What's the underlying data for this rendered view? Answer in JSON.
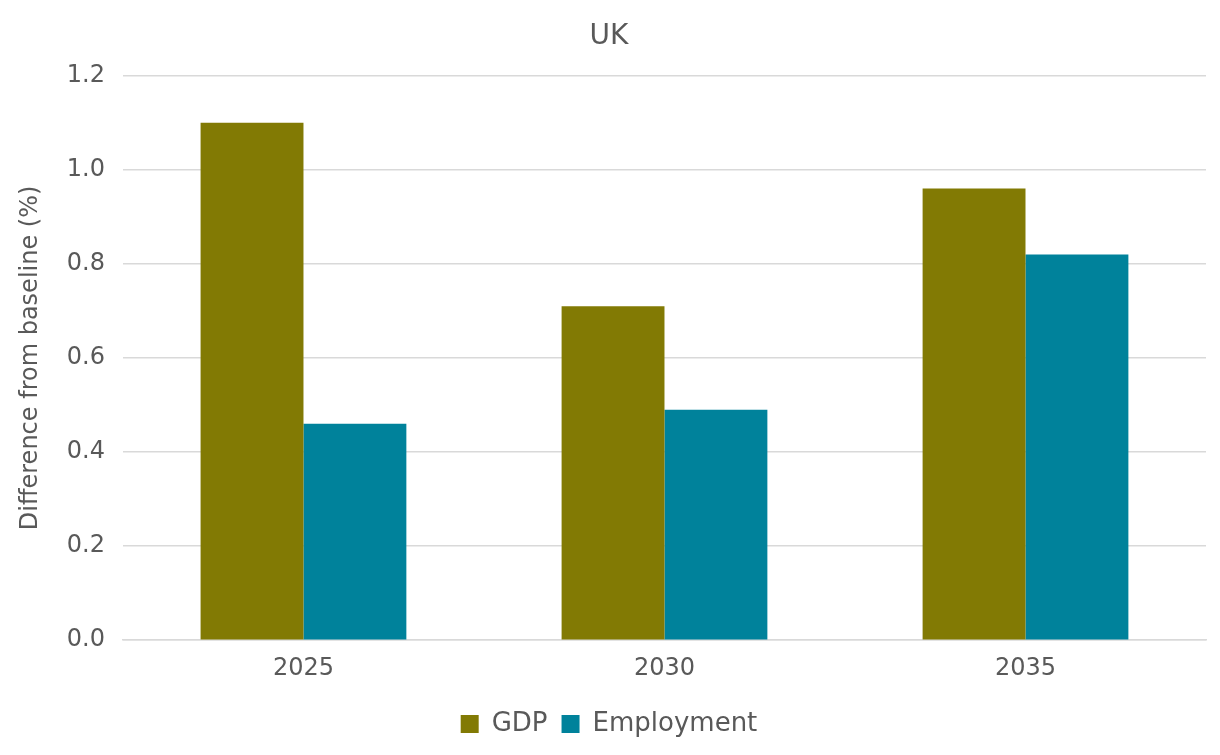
{
  "chart_data": {
    "type": "bar",
    "title": "UK",
    "ylabel": "Difference from baseline (%)",
    "categories": [
      "2025",
      "2030",
      "2035"
    ],
    "series": [
      {
        "name": "GDP",
        "color": "#827a04",
        "values": [
          1.1,
          0.71,
          0.96
        ]
      },
      {
        "name": "Employment",
        "color": "#00829b",
        "values": [
          0.46,
          0.49,
          0.82
        ]
      }
    ],
    "ylim": [
      0,
      1.2
    ],
    "yticks": [
      {
        "value": 0,
        "label": "0.0"
      },
      {
        "value": 0.2,
        "label": "0.2"
      },
      {
        "value": 0.4,
        "label": "0.4"
      },
      {
        "value": 0.6,
        "label": "0.6"
      },
      {
        "value": 0.8,
        "label": "0.8"
      },
      {
        "value": 1,
        "label": "1.0"
      },
      {
        "value": 1.2,
        "label": "1.2"
      }
    ],
    "grid": "y",
    "legend": "bottom"
  }
}
